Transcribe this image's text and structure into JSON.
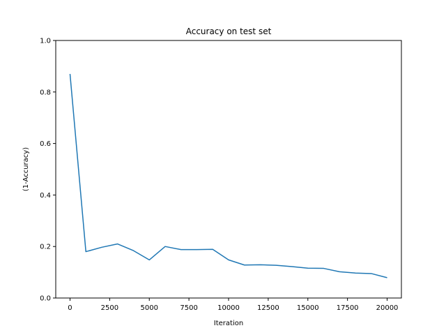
{
  "chart_data": {
    "type": "line",
    "title": "Accuracy on test set",
    "xlabel": "Iteration",
    "ylabel": "(1-Accuracy)",
    "xlim": [
      -900,
      20900
    ],
    "ylim": [
      0,
      1.0
    ],
    "xticks": [
      0,
      2500,
      5000,
      7500,
      10000,
      12500,
      15000,
      17500,
      20000
    ],
    "yticks": [
      0.0,
      0.2,
      0.4,
      0.6,
      0.8,
      1.0
    ],
    "ytick_labels": [
      "0.0",
      "0.2",
      "0.4",
      "0.6",
      "0.8",
      "1.0"
    ],
    "grid": false,
    "series": [
      {
        "color": "#1f77b4",
        "x": [
          0,
          1000,
          2000,
          3000,
          4000,
          5000,
          6000,
          7000,
          8000,
          9000,
          10000,
          11000,
          12000,
          13000,
          14000,
          15000,
          16000,
          17000,
          18000,
          19000,
          20000
        ],
        "y": [
          0.87,
          0.18,
          0.197,
          0.21,
          0.184,
          0.148,
          0.2,
          0.188,
          0.188,
          0.189,
          0.148,
          0.128,
          0.129,
          0.127,
          0.122,
          0.116,
          0.115,
          0.102,
          0.097,
          0.095,
          0.079
        ]
      }
    ]
  }
}
